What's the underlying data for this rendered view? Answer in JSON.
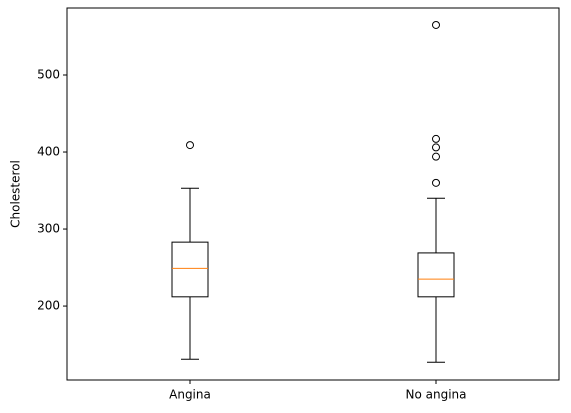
{
  "chart_data": {
    "type": "box",
    "y_label": "Cholesterol",
    "categories": [
      "Angina",
      "No angina"
    ],
    "boxes": [
      {
        "whislo": 131,
        "q1": 212,
        "med": 249,
        "q3": 283,
        "whishi": 353,
        "fliers": [
          409
        ]
      },
      {
        "whislo": 127,
        "q1": 212,
        "med": 235,
        "q3": 269,
        "whishi": 340,
        "fliers": [
          565,
          417,
          406,
          394,
          360
        ]
      }
    ],
    "box_color": "#000000",
    "median_color": "#ff7f0e",
    "ylim": [
      104,
      587
    ],
    "yticks": [
      200,
      300,
      400,
      500
    ]
  }
}
